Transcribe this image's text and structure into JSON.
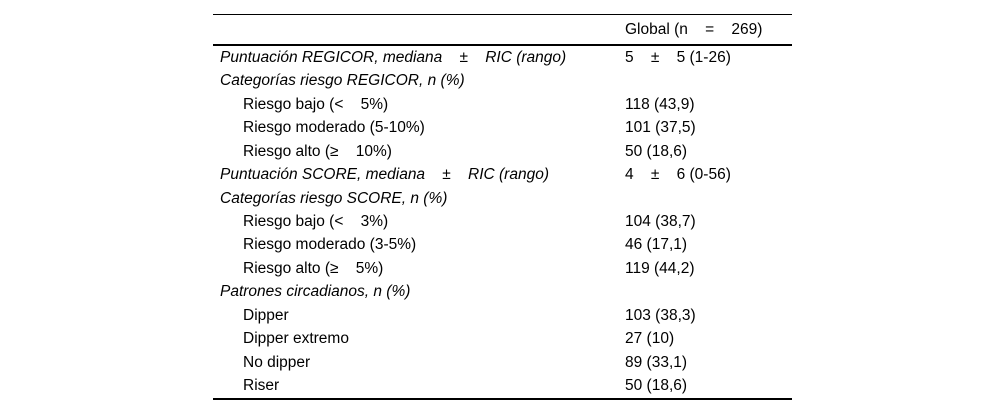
{
  "table": {
    "header": {
      "global_col": "Global (n    =    269)"
    },
    "rows": [
      {
        "label": "Puntuación REGICOR, mediana    ±    RIC (rango)",
        "value": "5    ±    5 (1-26)",
        "style": "section"
      },
      {
        "label": "Categorías riesgo REGICOR, n (%)",
        "value": "",
        "style": "section"
      },
      {
        "label": "Riesgo bajo (<    5%)",
        "value": "118 (43,9)",
        "style": "item"
      },
      {
        "label": "Riesgo moderado (5-10%)",
        "value": "101 (37,5)",
        "style": "item"
      },
      {
        "label": "Riesgo alto (≥    10%)",
        "value": "50 (18,6)",
        "style": "item"
      },
      {
        "label": "Puntuación SCORE, mediana    ±    RIC (rango)",
        "value": "4    ±    6 (0-56)",
        "style": "section"
      },
      {
        "label": "Categorías riesgo SCORE, n (%)",
        "value": "",
        "style": "section"
      },
      {
        "label": "Riesgo bajo (<    3%)",
        "value": "104 (38,7)",
        "style": "item"
      },
      {
        "label": "Riesgo moderado (3-5%)",
        "value": "46 (17,1)",
        "style": "item"
      },
      {
        "label": "Riesgo alto (≥    5%)",
        "value": "119 (44,2)",
        "style": "item"
      },
      {
        "label": "Patrones circadianos, n (%)",
        "value": "",
        "style": "section"
      },
      {
        "label": "Dipper",
        "value": "103 (38,3)",
        "style": "item"
      },
      {
        "label": "Dipper extremo",
        "value": "27 (10)",
        "style": "item"
      },
      {
        "label": "No dipper",
        "value": "89 (33,1)",
        "style": "item"
      },
      {
        "label": "Riser",
        "value": "50 (18,6)",
        "style": "item"
      }
    ],
    "colors": {
      "text": "#000000",
      "background": "#ffffff",
      "rule": "#000000"
    }
  }
}
